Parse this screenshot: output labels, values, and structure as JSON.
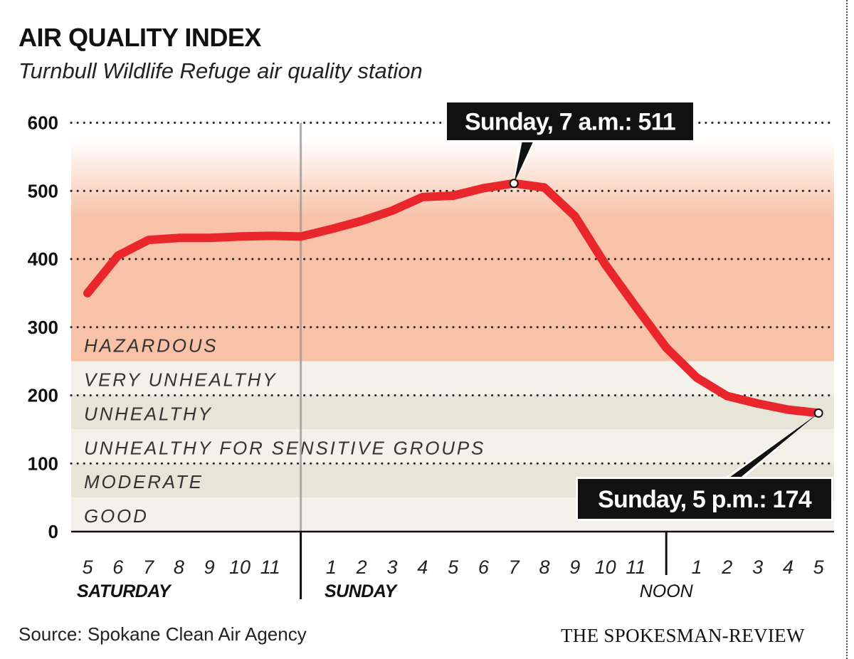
{
  "chart_data": {
    "type": "line",
    "title": "AIR QUALITY INDEX",
    "subtitle": "Turnbull Wildlife Refuge air quality station",
    "ylim": [
      0,
      600
    ],
    "yticks": [
      0,
      100,
      200,
      300,
      400,
      500,
      600
    ],
    "grid": "dotted horizontal",
    "x": [
      "5",
      "6",
      "7",
      "8",
      "9",
      "10",
      "11",
      "12",
      "1",
      "2",
      "3",
      "4",
      "5",
      "6",
      "7",
      "8",
      "9",
      "10",
      "11",
      "12",
      "1",
      "2",
      "3",
      "4",
      "5"
    ],
    "x_tick_labels": [
      "5",
      "6",
      "7",
      "8",
      "9",
      "10",
      "11",
      "",
      "1",
      "2",
      "3",
      "4",
      "5",
      "6",
      "7",
      "8",
      "9",
      "10",
      "11",
      "",
      "1",
      "2",
      "3",
      "4",
      "5"
    ],
    "day_labels": [
      "SATURDAY",
      "SUNDAY",
      "NOON"
    ],
    "series": [
      {
        "color": "#e8262b",
        "values": [
          350,
          405,
          428,
          431,
          431,
          433,
          434,
          433,
          444,
          456,
          471,
          491,
          493,
          504,
          511,
          505,
          463,
          392,
          330,
          270,
          226,
          199,
          188,
          179,
          174
        ]
      }
    ],
    "bands": [
      {
        "label": "HAZARDOUS",
        "from": 250,
        "to": 575,
        "color": "#f7c2a8"
      },
      {
        "label": "VERY UNHEALTHY",
        "from": 200,
        "to": 250,
        "color": "#f4f1ea"
      },
      {
        "label": "UNHEALTHY",
        "from": 150,
        "to": 200,
        "color": "#e7e4d8"
      },
      {
        "label": "UNHEALTHY FOR SENSITIVE GROUPS",
        "from": 100,
        "to": 150,
        "color": "#f4f1ea"
      },
      {
        "label": "MODERATE",
        "from": 50,
        "to": 100,
        "color": "#e7e4d8"
      },
      {
        "label": "GOOD",
        "from": 0,
        "to": 50,
        "color": "#f4f1ea"
      }
    ],
    "annotations": [
      {
        "text": "Sunday, 7 a.m.: 511",
        "index": 14,
        "value": 511
      },
      {
        "text": "Sunday, 5 p.m.: 174",
        "index": 24,
        "value": 174
      }
    ]
  },
  "source": "Source: Spokane Clean Air Agency",
  "publisher": "THE SPOKESMAN-REVIEW"
}
